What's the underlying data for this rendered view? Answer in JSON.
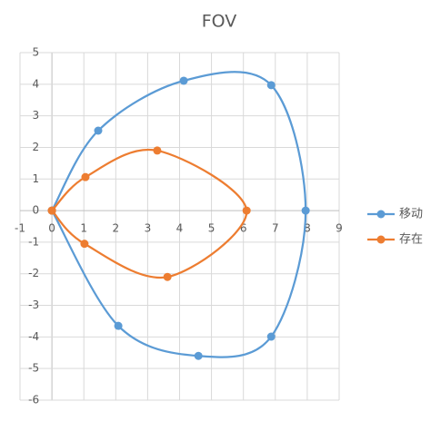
{
  "chart_data": {
    "type": "scatter",
    "title": "FOV",
    "xlim": [
      -1,
      9
    ],
    "ylim": [
      -6,
      5
    ],
    "xticks": [
      -1,
      0,
      1,
      2,
      3,
      4,
      5,
      6,
      7,
      8,
      9
    ],
    "yticks": [
      -6,
      -5,
      -4,
      -3,
      -2,
      -1,
      0,
      1,
      2,
      3,
      4,
      5
    ],
    "grid": true,
    "smooth": true,
    "legend": "right",
    "series": [
      {
        "name": "移动",
        "color": "#5b9bd5",
        "x": [
          0,
          1.45,
          4.13,
          6.87,
          7.95,
          6.87,
          4.59,
          2.08,
          0
        ],
        "values": [
          0,
          2.53,
          4.11,
          3.97,
          0,
          -3.99,
          -4.6,
          -3.65,
          0
        ]
      },
      {
        "name": "存在",
        "color": "#ed7d31",
        "x": [
          0,
          1.05,
          3.3,
          6.1,
          3.62,
          1.02,
          0
        ],
        "values": [
          0,
          1.06,
          1.9,
          0,
          -2.1,
          -1.05,
          0
        ]
      }
    ]
  }
}
